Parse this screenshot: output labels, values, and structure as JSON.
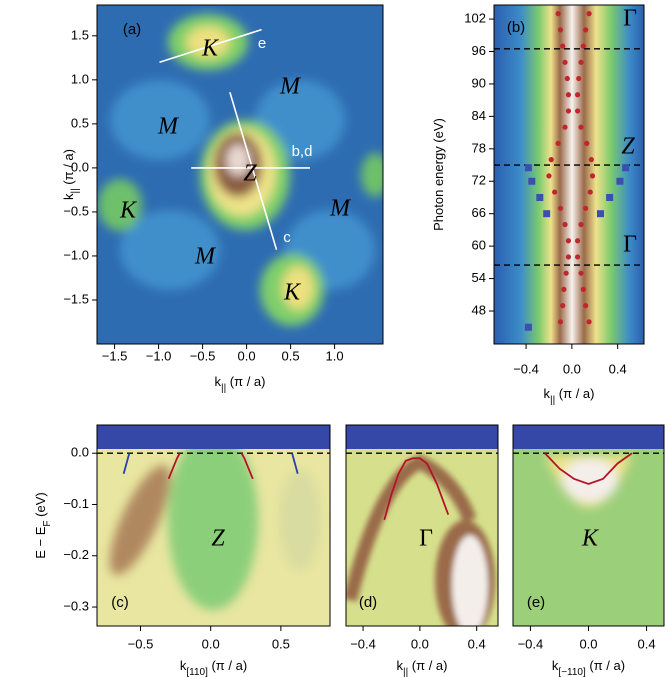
{
  "chart_data": [
    {
      "type": "heatmap",
      "panel_label": "(a)",
      "xlabel": [
        "k",
        "||",
        " (π / a)"
      ],
      "ylabel": [
        "k",
        "||",
        " (π / a)"
      ],
      "xlim": [
        -1.7,
        1.55
      ],
      "ylim": [
        -2.0,
        1.85
      ],
      "xticks": [
        {
          "value": -1.5,
          "label": "−1.5"
        },
        {
          "value": -1.0,
          "label": "−1.0"
        },
        {
          "value": -0.5,
          "label": "−0.5"
        },
        {
          "value": 0,
          "label": "0.0"
        },
        {
          "value": 0.5,
          "label": "0.5"
        },
        {
          "value": 1.0,
          "label": "1.0"
        }
      ],
      "yticks": [
        {
          "value": 1.5,
          "label": "1.5"
        },
        {
          "value": 1.0,
          "label": "1.0"
        },
        {
          "value": 0.5,
          "label": "0.5"
        },
        {
          "value": 0,
          "label": "0.0"
        },
        {
          "value": -0.5,
          "label": "−0.5"
        },
        {
          "value": -1.0,
          "label": "−1.0"
        },
        {
          "value": -1.5,
          "label": "−1.5"
        }
      ],
      "annotations": [
        "K",
        "M",
        "M",
        "Z",
        "K",
        "M",
        "M",
        "K",
        "e",
        "b,d",
        "c"
      ],
      "series": [
        {
          "color": "#ffffff",
          "x": [
            -0.99,
            0.17
          ],
          "values": [
            1.2,
            1.57
          ]
        },
        {
          "color": "#ffffff",
          "x": [
            -0.63,
            0.72
          ],
          "values": [
            0,
            0
          ]
        },
        {
          "color": "#ffffff",
          "x": [
            -0.19,
            0.34
          ],
          "values": [
            0.86,
            -0.93
          ]
        }
      ]
    },
    {
      "type": "heatmap",
      "panel_label": "(b)",
      "xlabel": [
        "k",
        "||",
        " (π / a)"
      ],
      "ylabel": [
        "Photon energy (eV)",
        "",
        ""
      ],
      "xlim": [
        -0.68,
        0.63
      ],
      "ylim": [
        41.9,
        104.6
      ],
      "xticks": [
        {
          "value": -0.4,
          "label": "−0.4"
        },
        {
          "value": 0,
          "label": "0.0"
        },
        0.4
      ],
      "yticks": [
        102,
        96,
        90,
        84,
        78,
        72,
        66,
        60,
        54,
        48
      ],
      "hlines": [
        96.5,
        75,
        56.5
      ],
      "annotations": [
        "Γ",
        "Z",
        "Γ"
      ],
      "series": [
        {
          "color": "#c0262d",
          "marker": "circle",
          "x": [
            -0.12,
            -0.1,
            -0.08,
            -0.06,
            -0.04,
            -0.03,
            -0.03,
            -0.06,
            -0.12,
            -0.18,
            -0.2,
            -0.15,
            -0.1,
            -0.06,
            -0.03,
            -0.03,
            -0.05,
            -0.07,
            -0.08,
            -0.1
          ],
          "values": [
            103,
            100,
            97,
            94,
            91,
            88,
            85,
            82,
            79,
            76,
            73,
            70,
            67,
            64,
            61,
            58,
            55,
            52,
            49,
            46
          ]
        },
        {
          "color": "#c0262d",
          "marker": "circle",
          "x": [
            0.15,
            0.12,
            0.1,
            0.08,
            0.06,
            0.05,
            0.05,
            0.08,
            0.13,
            0.17,
            0.18,
            0.16,
            0.12,
            0.08,
            0.05,
            0.05,
            0.08,
            0.1,
            0.12,
            0.15
          ],
          "values": [
            103,
            100,
            97,
            94,
            91,
            88,
            85,
            82,
            79,
            76,
            73,
            70,
            67,
            64,
            61,
            58,
            55,
            52,
            49,
            46
          ]
        },
        {
          "color": "#3a4fb0",
          "marker": "square",
          "x": [
            -0.38,
            -0.35,
            -0.28,
            -0.22,
            0.47,
            0.42,
            0.33,
            0.25,
            -0.38
          ],
          "values": [
            74.5,
            72,
            69,
            66,
            74.5,
            72,
            69,
            66,
            45
          ]
        }
      ]
    },
    {
      "type": "heatmap",
      "panel_label": "(c)",
      "xlabel": [
        "k",
        "[110]",
        " (π / a)"
      ],
      "ylabel": [
        "E − E",
        "F",
        " (eV)"
      ],
      "xlim": [
        -0.81,
        0.85
      ],
      "ylim": [
        -0.337,
        0.055
      ],
      "xticks": [
        {
          "value": -0.5,
          "label": "−0.5"
        },
        {
          "value": 0,
          "label": "0.0"
        },
        0.5
      ],
      "yticks": [
        {
          "value": 0,
          "label": "0.0"
        },
        {
          "value": -0.1,
          "label": "−0.1"
        },
        {
          "value": -0.2,
          "label": "−0.2"
        },
        {
          "value": -0.3,
          "label": "−0.3"
        }
      ],
      "hlines": [
        0
      ],
      "annotations": [
        "Z"
      ],
      "series": [
        {
          "color": "#b5122a",
          "x": [
            -0.3,
            -0.27,
            -0.24,
            -0.22
          ],
          "values": [
            -0.05,
            -0.03,
            -0.01,
            0.0
          ]
        },
        {
          "color": "#b5122a",
          "x": [
            0.3,
            0.27,
            0.24,
            0.22
          ],
          "values": [
            -0.05,
            -0.03,
            -0.01,
            0.0
          ]
        },
        {
          "color": "#2a3fb0",
          "x": [
            -0.62,
            -0.6,
            -0.58
          ],
          "values": [
            -0.04,
            -0.02,
            0.0
          ]
        },
        {
          "color": "#2a3fb0",
          "x": [
            0.62,
            0.6,
            0.58
          ],
          "values": [
            -0.04,
            -0.02,
            0.0
          ]
        }
      ]
    },
    {
      "type": "heatmap",
      "panel_label": "(d)",
      "xlabel": [
        "k",
        "||",
        " (π / a)"
      ],
      "xlim": [
        -0.52,
        0.55
      ],
      "ylim": [
        -0.337,
        0.055
      ],
      "xticks": [
        {
          "value": -0.4,
          "label": "−0.4"
        },
        {
          "value": 0,
          "label": "0.0"
        },
        0.4
      ],
      "hlines": [
        0
      ],
      "annotations": [
        "Γ"
      ],
      "series": [
        {
          "color": "#b5122a",
          "x": [
            -0.25,
            -0.2,
            -0.15,
            -0.1,
            -0.05,
            0,
            0.05,
            0.12,
            0.2
          ],
          "values": [
            -0.13,
            -0.08,
            -0.04,
            -0.015,
            -0.01,
            -0.01,
            -0.02,
            -0.06,
            -0.12
          ]
        }
      ]
    },
    {
      "type": "heatmap",
      "panel_label": "(e)",
      "xlabel": [
        "k",
        "[−110]",
        " (π / a)"
      ],
      "xlim": [
        -0.52,
        0.52
      ],
      "ylim": [
        -0.337,
        0.055
      ],
      "xticks": [
        {
          "value": -0.4,
          "label": "−0.4"
        },
        {
          "value": 0,
          "label": "0.0"
        },
        0.4
      ],
      "hlines": [
        0
      ],
      "annotations": [
        "K"
      ],
      "series": [
        {
          "color": "#b5122a",
          "x": [
            -0.3,
            -0.2,
            -0.1,
            0,
            0.1,
            0.2,
            0.3
          ],
          "values": [
            0.0,
            -0.03,
            -0.05,
            -0.06,
            -0.05,
            -0.02,
            0.0
          ]
        }
      ]
    }
  ]
}
